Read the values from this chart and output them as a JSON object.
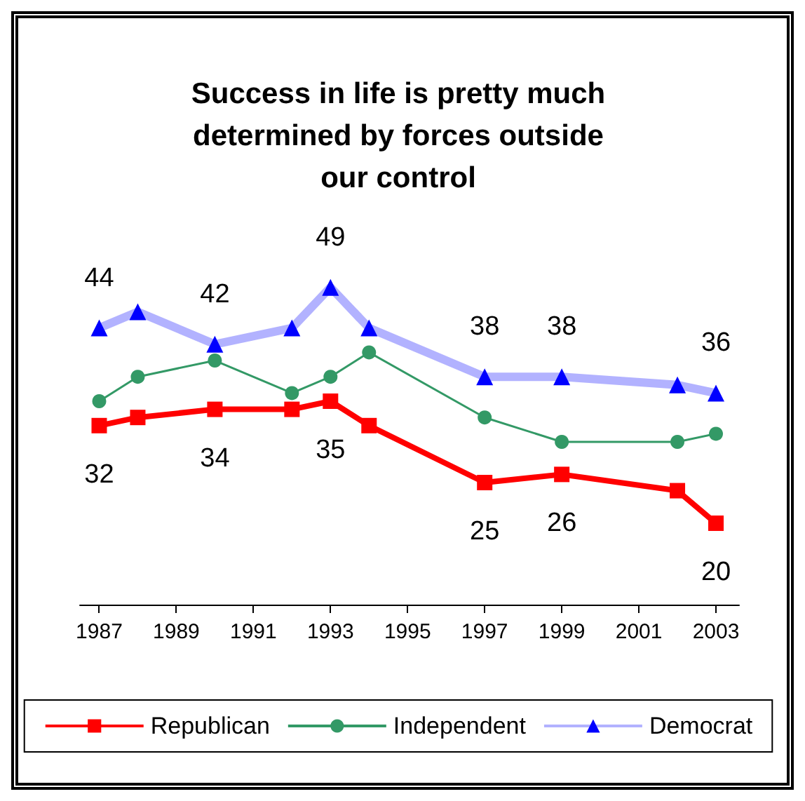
{
  "chart_data": {
    "type": "line",
    "title": "Success in life is pretty much\ndetermined by forces outside\nour control",
    "xlim": [
      1986.5,
      2003.6
    ],
    "xticks": [
      1987,
      1989,
      1991,
      1993,
      1995,
      1997,
      1999,
      2001,
      2003
    ],
    "tick_labels": "x",
    "grid": false,
    "legend": "bottom",
    "series": [
      {
        "name": "Republican",
        "color": "#ff0000",
        "marker": "square",
        "x": [
          1987,
          1988,
          1990,
          1992,
          1993,
          1994,
          1997,
          1999,
          2002,
          2003
        ],
        "values": [
          32,
          33,
          34,
          34,
          35,
          32,
          25,
          26,
          24,
          20
        ],
        "value_labels": [
          "32",
          null,
          "34",
          null,
          "35",
          null,
          "25",
          "26",
          null,
          "20"
        ]
      },
      {
        "name": "Independent",
        "color": "#339966",
        "marker": "circle",
        "x": [
          1987,
          1988,
          1990,
          1992,
          1993,
          1994,
          1997,
          1999,
          2002,
          2003
        ],
        "values": [
          35,
          38,
          40,
          36,
          38,
          41,
          33,
          30,
          30,
          31
        ]
      },
      {
        "name": "Democrat",
        "color": "#0000ff",
        "marker": "triangle",
        "x": [
          1987,
          1988,
          1990,
          1992,
          1993,
          1994,
          1997,
          1999,
          2002,
          2003
        ],
        "values": [
          44,
          46,
          42,
          44,
          49,
          44,
          38,
          38,
          37,
          36
        ],
        "value_labels": [
          "44",
          null,
          "42",
          null,
          "49",
          null,
          "38",
          "38",
          null,
          "36"
        ]
      }
    ]
  }
}
